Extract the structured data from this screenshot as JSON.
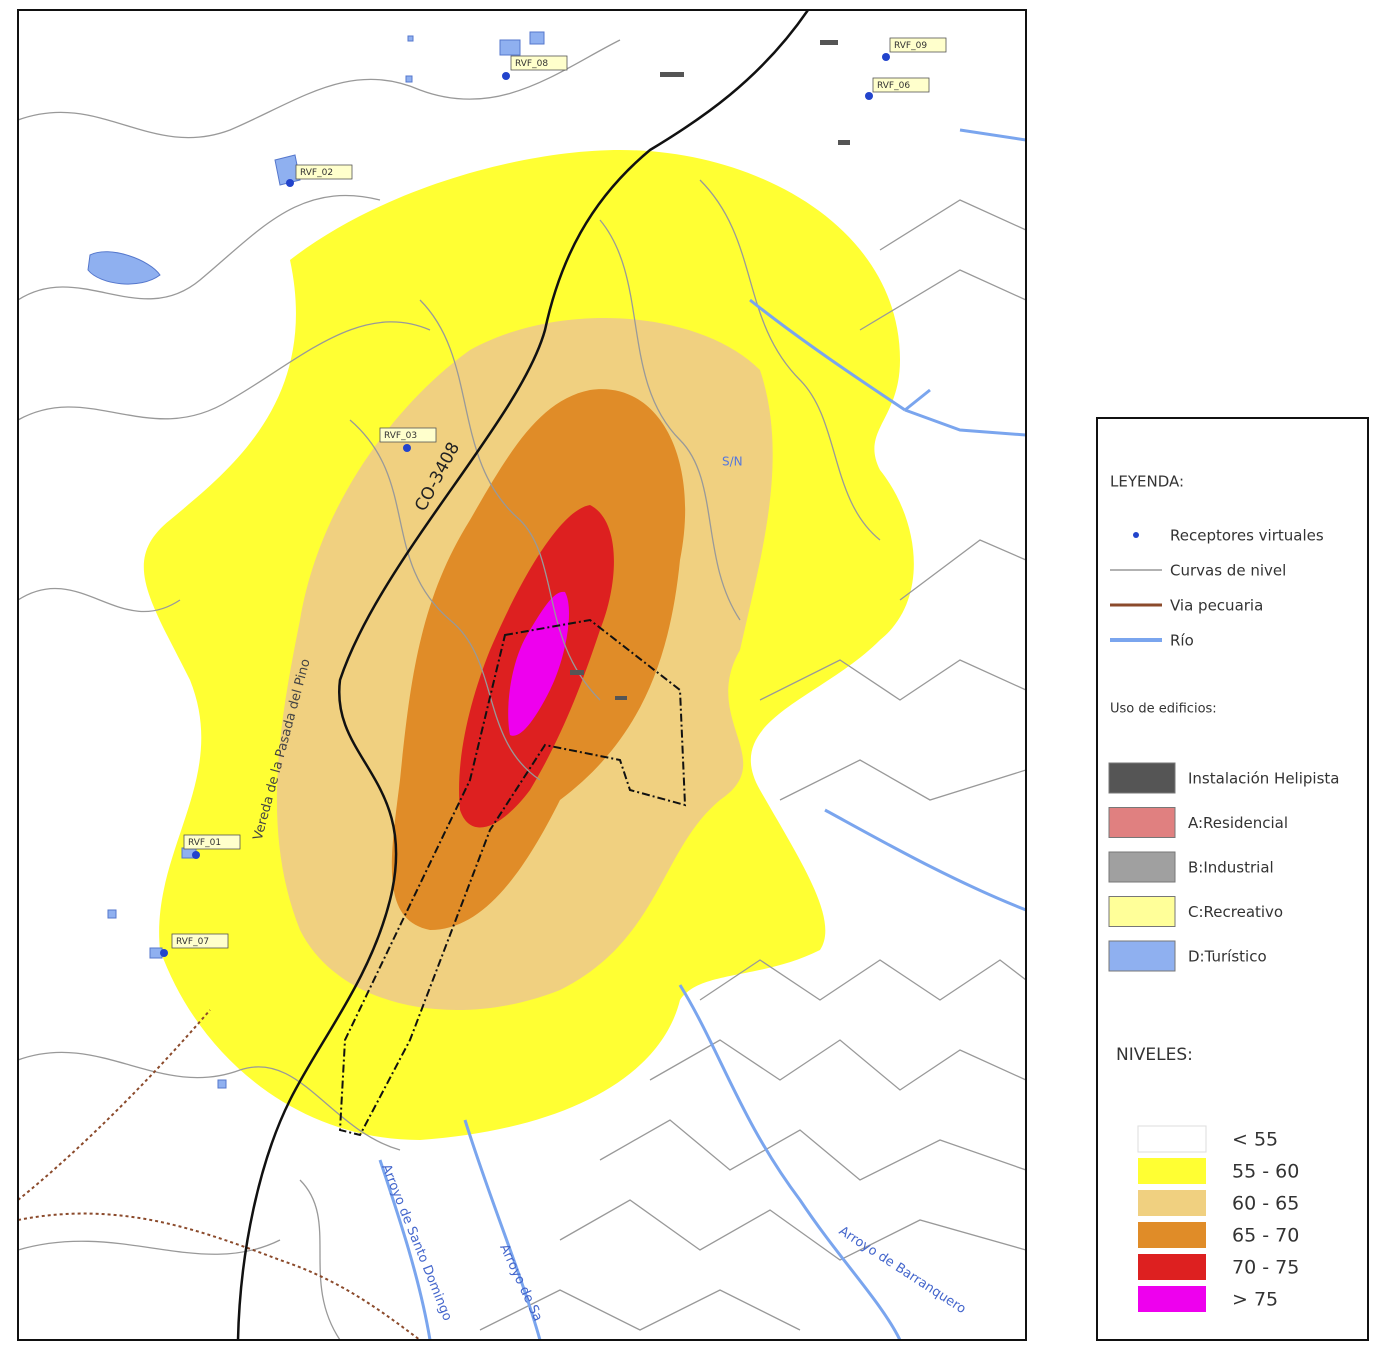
{
  "map": {
    "receptors": [
      "RVF_09",
      "RVF_08",
      "RVF_06",
      "RVF_02",
      "RVF_03",
      "RVF_01",
      "RVF_07"
    ],
    "road": "CO-3408",
    "livestock_route": "Vereda de la Pasada del Pino",
    "unnamed": "S/N",
    "streams": [
      "Arroyo de Santo Domingo",
      "Arroyo de Sa",
      "Arroyo de Barranquero"
    ]
  },
  "legend": {
    "title": "LEYENDA:",
    "items": [
      "Receptores virtuales",
      "Curvas de nivel",
      "Via pecuaria",
      "Río"
    ],
    "buildings_title": "Uso de edificios:",
    "buildings": [
      "Instalación Helipista",
      "A:Residencial",
      "B:Industrial",
      "C:Recreativo",
      "D:Turístico"
    ],
    "levels_title": "NIVELES:",
    "levels": [
      "< 55",
      "55 - 60",
      "60 - 65",
      "65 - 70",
      "70 - 75",
      "> 75"
    ]
  }
}
